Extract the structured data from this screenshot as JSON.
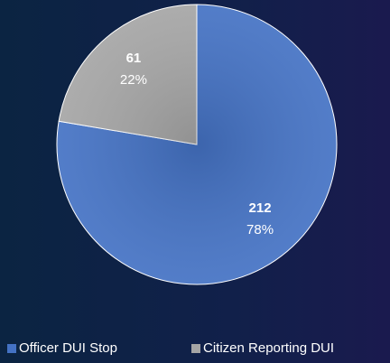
{
  "chart_data": {
    "type": "pie",
    "categories": [
      "Officer DUI Stop",
      "Citizen Reporting DUI"
    ],
    "values": [
      212,
      61
    ],
    "percentages": [
      78,
      22
    ],
    "percentage_labels": [
      "78%",
      "22%"
    ],
    "colors": [
      "#4472c4",
      "#a5a5a5"
    ],
    "legend": "bottom"
  }
}
